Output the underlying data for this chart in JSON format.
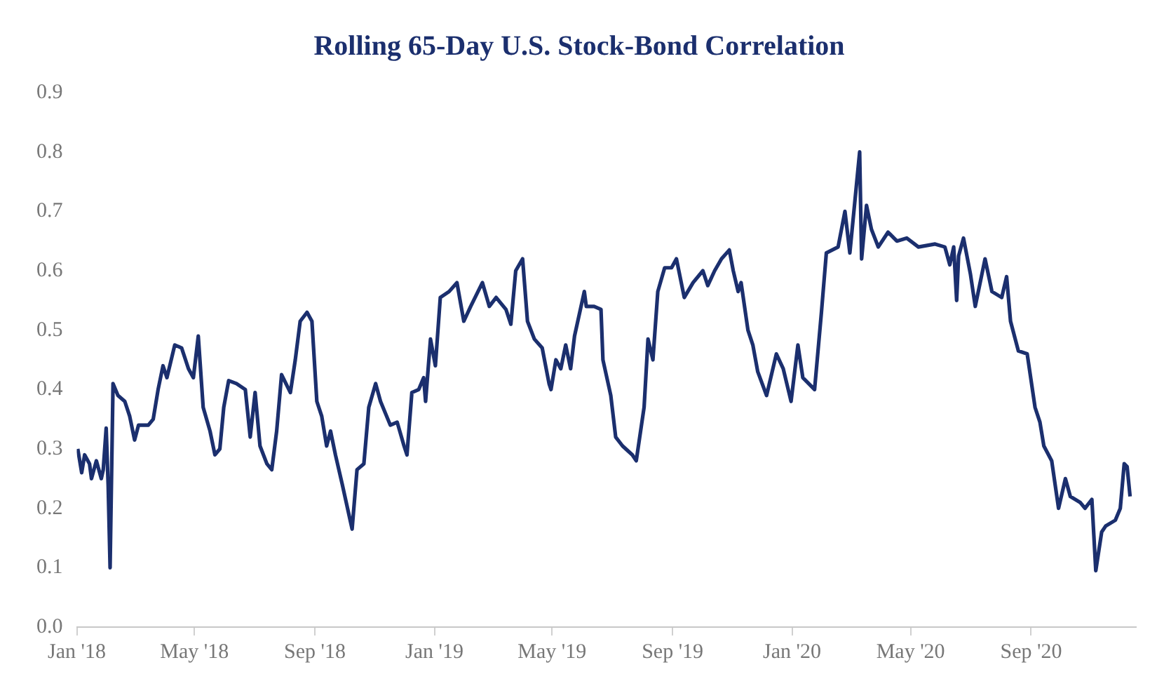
{
  "chart_data": {
    "type": "line",
    "title": "Rolling 65-Day U.S. Stock-Bond Correlation",
    "x": [
      "2018-01-02",
      "2018-01-06",
      "2018-01-09",
      "2018-01-14",
      "2018-01-16",
      "2018-01-21",
      "2018-01-26",
      "2018-01-28",
      "2018-01-31",
      "2018-02-02",
      "2018-02-04",
      "2018-02-07",
      "2018-02-12",
      "2018-02-19",
      "2018-02-24",
      "2018-03-01",
      "2018-03-05",
      "2018-03-15",
      "2018-03-20",
      "2018-03-25",
      "2018-03-30",
      "2018-04-03",
      "2018-04-11",
      "2018-04-18",
      "2018-04-25",
      "2018-04-30",
      "2018-05-05",
      "2018-05-10",
      "2018-05-17",
      "2018-05-22",
      "2018-05-27",
      "2018-05-31",
      "2018-06-05",
      "2018-06-13",
      "2018-06-22",
      "2018-06-27",
      "2018-07-02",
      "2018-07-07",
      "2018-07-14",
      "2018-07-19",
      "2018-07-24",
      "2018-07-29",
      "2018-08-07",
      "2018-08-12",
      "2018-08-17",
      "2018-08-24",
      "2018-08-29",
      "2018-09-03",
      "2018-09-08",
      "2018-09-13",
      "2018-09-17",
      "2018-09-22",
      "2018-09-29",
      "2018-10-07",
      "2018-10-09",
      "2018-10-14",
      "2018-10-21",
      "2018-10-26",
      "2018-11-02",
      "2018-11-07",
      "2018-11-17",
      "2018-11-24",
      "2018-12-01",
      "2018-12-04",
      "2018-12-09",
      "2018-12-16",
      "2018-12-21",
      "2018-12-23",
      "2018-12-28",
      "2019-01-02",
      "2019-01-07",
      "2019-01-16",
      "2019-01-24",
      "2019-01-31",
      "2019-02-07",
      "2019-02-19",
      "2019-02-26",
      "2019-03-05",
      "2019-03-15",
      "2019-03-20",
      "2019-03-25",
      "2019-04-01",
      "2019-04-06",
      "2019-04-13",
      "2019-04-21",
      "2019-04-28",
      "2019-04-30",
      "2019-05-05",
      "2019-05-10",
      "2019-05-15",
      "2019-05-20",
      "2019-05-24",
      "2019-06-03",
      "2019-06-05",
      "2019-06-13",
      "2019-06-20",
      "2019-06-22",
      "2019-06-30",
      "2019-07-05",
      "2019-07-12",
      "2019-07-22",
      "2019-07-26",
      "2019-08-03",
      "2019-08-07",
      "2019-08-12",
      "2019-08-17",
      "2019-08-24",
      "2019-08-31",
      "2019-09-05",
      "2019-09-13",
      "2019-09-22",
      "2019-10-02",
      "2019-10-07",
      "2019-10-14",
      "2019-10-21",
      "2019-10-29",
      "2019-11-02",
      "2019-11-07",
      "2019-11-10",
      "2019-11-17",
      "2019-11-22",
      "2019-11-27",
      "2019-12-06",
      "2019-12-16",
      "2019-12-23",
      "2019-12-31",
      "2020-01-07",
      "2020-01-12",
      "2020-01-24",
      "2020-01-31",
      "2020-02-05",
      "2020-02-17",
      "2020-02-24",
      "2020-02-29",
      "2020-03-05",
      "2020-03-10",
      "2020-03-12",
      "2020-03-17",
      "2020-03-22",
      "2020-03-29",
      "2020-04-08",
      "2020-04-17",
      "2020-04-27",
      "2020-05-09",
      "2020-05-26",
      "2020-06-05",
      "2020-06-10",
      "2020-06-14",
      "2020-06-17",
      "2020-06-19",
      "2020-06-24",
      "2020-07-01",
      "2020-07-06",
      "2020-07-16",
      "2020-07-23",
      "2020-08-02",
      "2020-08-07",
      "2020-08-11",
      "2020-08-19",
      "2020-08-28",
      "2020-09-05",
      "2020-09-10",
      "2020-09-14",
      "2020-09-22",
      "2020-09-29",
      "2020-10-06",
      "2020-10-11",
      "2020-10-21",
      "2020-10-26",
      "2020-11-02",
      "2020-11-06",
      "2020-11-12",
      "2020-11-16",
      "2020-11-26",
      "2020-12-01",
      "2020-12-05",
      "2020-12-08",
      "2020-12-11"
    ],
    "series": [
      {
        "color": "#1b2f6e",
        "values": [
          0.3,
          0.26,
          0.29,
          0.275,
          0.25,
          0.28,
          0.25,
          0.265,
          0.335,
          0.24,
          0.1,
          0.41,
          0.39,
          0.38,
          0.355,
          0.315,
          0.34,
          0.34,
          0.35,
          0.4,
          0.44,
          0.42,
          0.475,
          0.47,
          0.435,
          0.42,
          0.49,
          0.37,
          0.33,
          0.29,
          0.3,
          0.37,
          0.415,
          0.41,
          0.4,
          0.32,
          0.395,
          0.305,
          0.275,
          0.265,
          0.33,
          0.425,
          0.395,
          0.45,
          0.515,
          0.53,
          0.515,
          0.38,
          0.355,
          0.305,
          0.33,
          0.29,
          0.24,
          0.18,
          0.165,
          0.265,
          0.275,
          0.37,
          0.41,
          0.38,
          0.34,
          0.345,
          0.305,
          0.29,
          0.395,
          0.4,
          0.42,
          0.38,
          0.485,
          0.44,
          0.555,
          0.565,
          0.58,
          0.515,
          0.54,
          0.58,
          0.54,
          0.555,
          0.535,
          0.51,
          0.6,
          0.62,
          0.515,
          0.485,
          0.47,
          0.41,
          0.4,
          0.45,
          0.435,
          0.475,
          0.435,
          0.49,
          0.565,
          0.54,
          0.54,
          0.535,
          0.45,
          0.39,
          0.32,
          0.305,
          0.29,
          0.28,
          0.37,
          0.485,
          0.45,
          0.565,
          0.605,
          0.605,
          0.62,
          0.555,
          0.58,
          0.6,
          0.575,
          0.6,
          0.62,
          0.635,
          0.6,
          0.565,
          0.58,
          0.5,
          0.475,
          0.43,
          0.39,
          0.46,
          0.435,
          0.38,
          0.475,
          0.42,
          0.4,
          0.53,
          0.63,
          0.64,
          0.7,
          0.63,
          0.715,
          0.8,
          0.62,
          0.71,
          0.67,
          0.64,
          0.665,
          0.65,
          0.655,
          0.64,
          0.645,
          0.64,
          0.61,
          0.64,
          0.55,
          0.625,
          0.655,
          0.595,
          0.54,
          0.62,
          0.565,
          0.555,
          0.59,
          0.515,
          0.465,
          0.46,
          0.37,
          0.345,
          0.305,
          0.28,
          0.2,
          0.25,
          0.22,
          0.21,
          0.2,
          0.215,
          0.095,
          0.16,
          0.17,
          0.18,
          0.2,
          0.275,
          0.27,
          0.22
        ]
      }
    ],
    "xlim": [
      "2018-01-01",
      "2020-12-17"
    ],
    "xticks": [
      {
        "value": "2018-01-01",
        "label": "Jan '18"
      },
      {
        "value": "2018-05-01",
        "label": "May '18"
      },
      {
        "value": "2018-09-01",
        "label": "Sep '18"
      },
      {
        "value": "2019-01-01",
        "label": "Jan '19"
      },
      {
        "value": "2019-05-01",
        "label": "May '19"
      },
      {
        "value": "2019-09-01",
        "label": "Sep '19"
      },
      {
        "value": "2020-01-01",
        "label": "Jan '20"
      },
      {
        "value": "2020-05-01",
        "label": "May '20"
      },
      {
        "value": "2020-09-01",
        "label": "Sep '20"
      }
    ],
    "ylim": [
      0,
      0.9
    ],
    "yticks": [
      {
        "value": 0,
        "label": "0.0"
      },
      {
        "value": 0.1,
        "label": "0.1"
      },
      {
        "value": 0.2,
        "label": "0.2"
      },
      {
        "value": 0.3,
        "label": "0.3"
      },
      {
        "value": 0.4,
        "label": "0.4"
      },
      {
        "value": 0.5,
        "label": "0.5"
      },
      {
        "value": 0.6,
        "label": "0.6"
      },
      {
        "value": 0.7,
        "label": "0.7"
      },
      {
        "value": 0.8,
        "label": "0.8"
      },
      {
        "value": 0.9,
        "label": "0.9"
      }
    ],
    "marker": "none",
    "line_style": "solid"
  }
}
